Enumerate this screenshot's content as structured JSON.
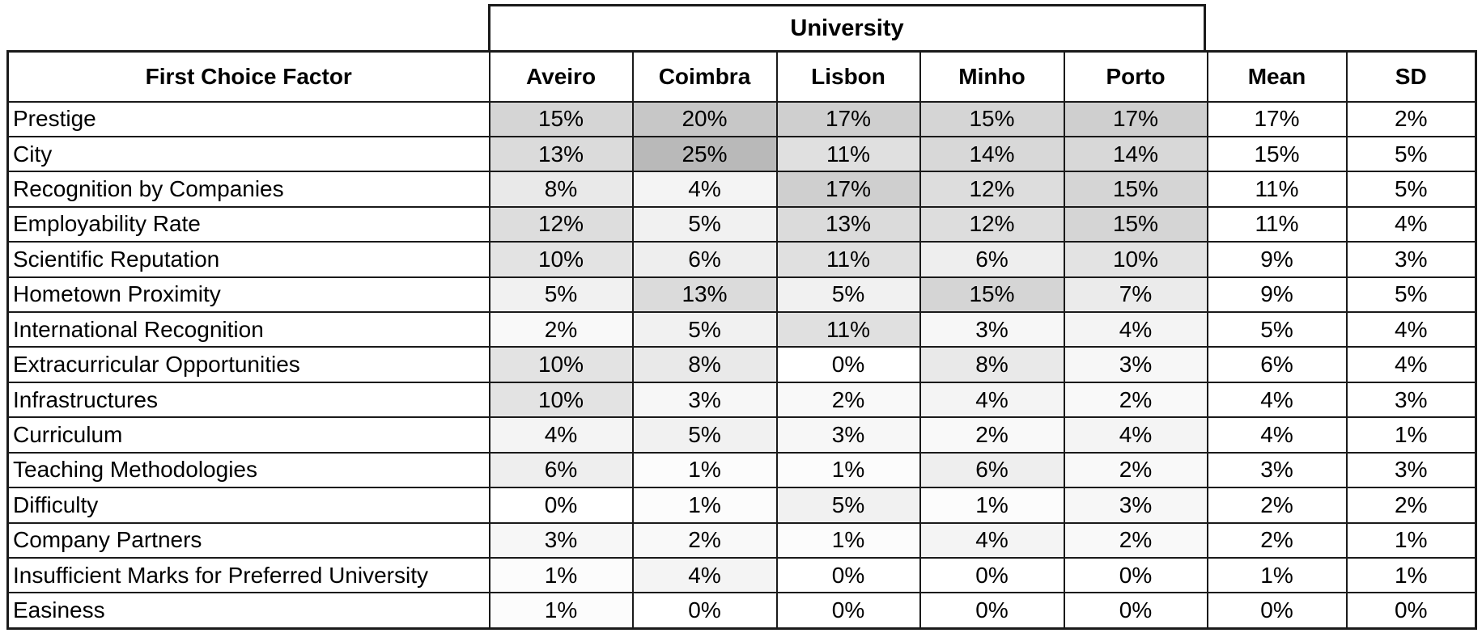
{
  "colors": {
    "background": "#ffffff",
    "border": "#1a1a1a",
    "text": "#000000"
  },
  "chart_data": {
    "type": "table",
    "group_header": "University",
    "columns": [
      "First Choice Factor",
      "Aveiro",
      "Coimbra",
      "Lisbon",
      "Minho",
      "Porto",
      "Mean",
      "SD"
    ],
    "university_columns": [
      "Aveiro",
      "Coimbra",
      "Lisbon",
      "Minho",
      "Porto"
    ],
    "rows": [
      {
        "label": "Prestige",
        "university_values": [
          "15%",
          "20%",
          "17%",
          "15%",
          "17%"
        ],
        "mean": "17%",
        "sd": "2%"
      },
      {
        "label": "City",
        "university_values": [
          "13%",
          "25%",
          "11%",
          "14%",
          "14%"
        ],
        "mean": "15%",
        "sd": "5%"
      },
      {
        "label": "Recognition by Companies",
        "university_values": [
          "8%",
          "4%",
          "17%",
          "12%",
          "15%"
        ],
        "mean": "11%",
        "sd": "5%"
      },
      {
        "label": "Employability Rate",
        "university_values": [
          "12%",
          "5%",
          "13%",
          "12%",
          "15%"
        ],
        "mean": "11%",
        "sd": "4%"
      },
      {
        "label": "Scientific Reputation",
        "university_values": [
          "10%",
          "6%",
          "11%",
          "6%",
          "10%"
        ],
        "mean": "9%",
        "sd": "3%"
      },
      {
        "label": "Hometown Proximity",
        "university_values": [
          "5%",
          "13%",
          "5%",
          "15%",
          "7%"
        ],
        "mean": "9%",
        "sd": "5%"
      },
      {
        "label": "International Recognition",
        "university_values": [
          "2%",
          "5%",
          "11%",
          "3%",
          "4%"
        ],
        "mean": "5%",
        "sd": "4%"
      },
      {
        "label": "Extracurricular Opportunities",
        "university_values": [
          "10%",
          "8%",
          "0%",
          "8%",
          "3%"
        ],
        "mean": "6%",
        "sd": "4%"
      },
      {
        "label": "Infrastructures",
        "university_values": [
          "10%",
          "3%",
          "2%",
          "4%",
          "2%"
        ],
        "mean": "4%",
        "sd": "3%"
      },
      {
        "label": "Curriculum",
        "university_values": [
          "4%",
          "5%",
          "3%",
          "2%",
          "4%"
        ],
        "mean": "4%",
        "sd": "1%"
      },
      {
        "label": "Teaching Methodologies",
        "university_values": [
          "6%",
          "1%",
          "1%",
          "6%",
          "2%"
        ],
        "mean": "3%",
        "sd": "3%"
      },
      {
        "label": "Difficulty",
        "university_values": [
          "0%",
          "1%",
          "5%",
          "1%",
          "3%"
        ],
        "mean": "2%",
        "sd": "2%"
      },
      {
        "label": "Company Partners",
        "university_values": [
          "3%",
          "2%",
          "1%",
          "4%",
          "2%"
        ],
        "mean": "2%",
        "sd": "1%"
      },
      {
        "label": "Insufficient Marks for Preferred University",
        "university_values": [
          "1%",
          "4%",
          "0%",
          "0%",
          "0%"
        ],
        "mean": "1%",
        "sd": "1%"
      },
      {
        "label": "Easiness",
        "university_values": [
          "1%",
          "0%",
          "0%",
          "0%",
          "0%"
        ],
        "mean": "0%",
        "sd": "0%"
      }
    ],
    "heatmap": {
      "applies_to": "university_values",
      "min_value": 0,
      "max_value": 25,
      "min_color": "#ffffff",
      "max_color": "#b9b9b9"
    },
    "layout": {
      "grid": "all-borders",
      "legend": "none",
      "mean_sd_shaded": false
    }
  }
}
